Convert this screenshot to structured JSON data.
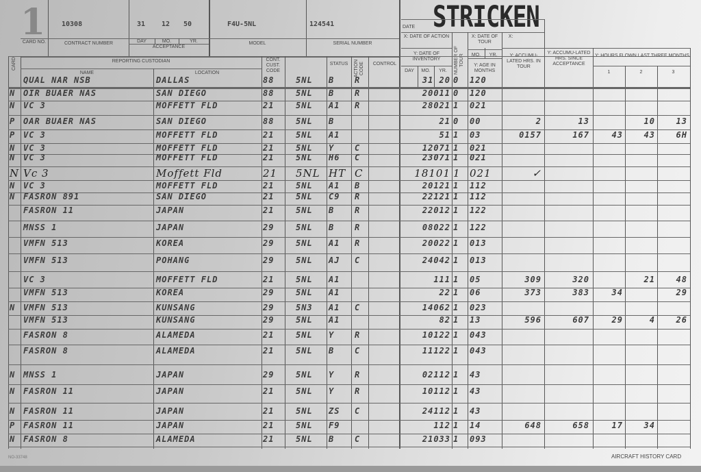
{
  "header": {
    "card_no": "1",
    "contract_number": "10308",
    "acceptance_day": "31",
    "acceptance_month": "12",
    "acceptance_year": "50",
    "model": "F4U-5NL",
    "serial_number": "124541",
    "stamp": "STRICKEN"
  },
  "labels": {
    "card_no": "CARD NO.",
    "contract_number": "CONTRACT NUMBER",
    "day": "DAY",
    "mo": "MO.",
    "yr": "YR.",
    "acceptance": "ACCEPTANCE",
    "model": "MODEL",
    "serial_number": "SERIAL NUMBER",
    "date": "DATE",
    "x_date_of_action": "X: DATE OF ACTION",
    "x_date_of_tour": "X: DATE OF TOUR",
    "x": "X:",
    "card": "CARD",
    "reporting_custodian": "REPORTING CUSTODIAN",
    "name": "NAME",
    "location": "LOCATION",
    "cust_code": "CONT. CUST. CODE",
    "status": "STATUS",
    "action_code": "ACTION CODE",
    "control": "CONTROL",
    "y_date_of_inventory": "Y: DATE OF INVENTORY",
    "inv_day": "DAY",
    "inv_mo": "MO.",
    "inv_yr": "YR.",
    "number_of_tour": "NUMBER OF TOUR",
    "tour_mo": "MO.",
    "tour_yr": "YR.",
    "y_age_in_months": "Y: AGE IN MONTHS",
    "y_accum_hrs_tour": "Y: ACCUMU-LATED HRS. IN TOUR",
    "y_accum_hrs_acceptance": "Y: ACCUMU-LATED HRS. SINCE ACCEPTANCE",
    "y_hours_last_three": "Y: HOURS FLOWN LAST THREE MONTHS",
    "m1": "1",
    "m2": "2",
    "m3": "3"
  },
  "rows": [
    [
      "",
      "QUAL NAR NSB",
      "DALLAS",
      "88",
      "5NL",
      "B",
      "R",
      "",
      "31 20",
      "0",
      "120",
      "",
      "",
      "",
      "",
      ""
    ],
    [
      "N",
      "OIR BUAER NAS",
      "SAN DIEGO",
      "88",
      "5NL",
      "B",
      "R",
      "",
      "20011",
      "0",
      "120",
      "",
      "",
      "",
      "",
      ""
    ],
    [
      "N",
      "VC 3",
      "MOFFETT FLD",
      "21",
      "5NL",
      "A1",
      "R",
      "",
      "28021",
      "1",
      "021",
      "",
      "",
      "",
      "",
      ""
    ],
    [
      "P",
      "OAR BUAER NAS",
      "SAN DIEGO",
      "88",
      "5NL",
      "B",
      "",
      "",
      "21",
      "0",
      "00",
      "2",
      "13",
      "",
      "10",
      "13"
    ],
    [
      "P",
      "VC 3",
      "MOFFETT FLD",
      "21",
      "5NL",
      "A1",
      "",
      "",
      "51",
      "1",
      "03",
      "0157",
      "167",
      "43",
      "43",
      "6H"
    ],
    [
      "N",
      "VC 3",
      "MOFFETT FLD",
      "21",
      "5NL",
      "Y",
      "C",
      "",
      "12071",
      "1",
      "021",
      "",
      "",
      "",
      "",
      ""
    ],
    [
      "N",
      "VC 3",
      "MOFFETT FLD",
      "21",
      "5NL",
      "H6",
      "C",
      "",
      "23071",
      "1",
      "021",
      "",
      "",
      "",
      "",
      ""
    ],
    [
      "N",
      "Vc 3",
      "Moffett Fld",
      "21",
      "5NL",
      "HT",
      "C",
      "",
      "18101",
      "1",
      "021",
      "✓",
      "",
      "",
      "",
      ""
    ],
    [
      "N",
      "VC 3",
      "MOFFETT FLD",
      "21",
      "5NL",
      "A1",
      "B",
      "",
      "20121",
      "1",
      "112",
      "",
      "",
      "",
      "",
      ""
    ],
    [
      "N",
      "FASRON 891",
      "SAN DIEGO",
      "21",
      "5NL",
      "C9",
      "R",
      "",
      "22121",
      "1",
      "112",
      "",
      "",
      "",
      "",
      ""
    ],
    [
      "",
      "FASRON 11",
      "JAPAN",
      "21",
      "5NL",
      "B",
      "R",
      "",
      "22012",
      "1",
      "122",
      "",
      "",
      "",
      "",
      ""
    ],
    [
      "",
      "MNSS 1",
      "JAPAN",
      "29",
      "5NL",
      "B",
      "R",
      "",
      "08022",
      "1",
      "122",
      "",
      "",
      "",
      "",
      ""
    ],
    [
      "",
      "VMFN 513",
      "KOREA",
      "29",
      "5NL",
      "A1",
      "R",
      "",
      "20022",
      "1",
      "013",
      "",
      "",
      "",
      "",
      ""
    ],
    [
      "",
      "VMFN 513",
      "POHANG",
      "29",
      "5NL",
      "AJ",
      "C",
      "",
      "24042",
      "1",
      "013",
      "",
      "",
      "",
      "",
      ""
    ],
    [
      "",
      "VC 3",
      "MOFFETT FLD",
      "21",
      "5NL",
      "A1",
      "",
      "",
      "111",
      "1",
      "05",
      "309",
      "320",
      "",
      "21",
      "48"
    ],
    [
      "",
      "VMFN 513",
      "KOREA",
      "29",
      "5NL",
      "A1",
      "",
      "",
      "22",
      "1",
      "06",
      "373",
      "383",
      "34",
      "",
      "29"
    ],
    [
      "N",
      "VMFN 513",
      "KUNSANG",
      "29",
      "5N3",
      "A1",
      "C",
      "",
      "14062",
      "1",
      "023",
      "",
      "",
      "",
      "",
      ""
    ],
    [
      "",
      "VMFN 513",
      "KUNSANG",
      "29",
      "5NL",
      "A1",
      "",
      "",
      "82",
      "1",
      "13",
      "596",
      "607",
      "29",
      "4",
      "26"
    ],
    [
      "",
      "FASRON 8",
      "ALAMEDA",
      "21",
      "5NL",
      "Y",
      "R",
      "",
      "10122",
      "1",
      "043",
      "",
      "",
      "",
      "",
      ""
    ],
    [
      "",
      "FASRON 8",
      "ALAMEDA",
      "21",
      "5NL",
      "B",
      "C",
      "",
      "11122",
      "1",
      "043",
      "",
      "",
      "",
      "",
      ""
    ],
    [
      "N",
      "MNSS 1",
      "JAPAN",
      "29",
      "5NL",
      "Y",
      "R",
      "",
      "02112",
      "1",
      "43",
      "",
      "",
      "",
      "",
      ""
    ],
    [
      "N",
      "FASRON 11",
      "JAPAN",
      "21",
      "5NL",
      "Y",
      "R",
      "",
      "10112",
      "1",
      "43",
      "",
      "",
      "",
      "",
      ""
    ],
    [
      "N",
      "FASRON 11",
      "JAPAN",
      "21",
      "5NL",
      "ZS",
      "C",
      "",
      "24112",
      "1",
      "43",
      "",
      "",
      "",
      "",
      ""
    ],
    [
      "P",
      "FASRON 11",
      "JAPAN",
      "21",
      "5NL",
      "F9",
      "",
      "",
      "112",
      "1",
      "14",
      "648",
      "658",
      "17",
      "34",
      ""
    ],
    [
      "N",
      "FASRON 8",
      "ALAMEDA",
      "21",
      "5NL",
      "B",
      "C",
      "",
      "21033",
      "1",
      "093",
      "",
      "",
      "",
      "",
      ""
    ]
  ],
  "footer": {
    "form_number": "NO-33748",
    "title": "AIRCRAFT HISTORY CARD"
  }
}
